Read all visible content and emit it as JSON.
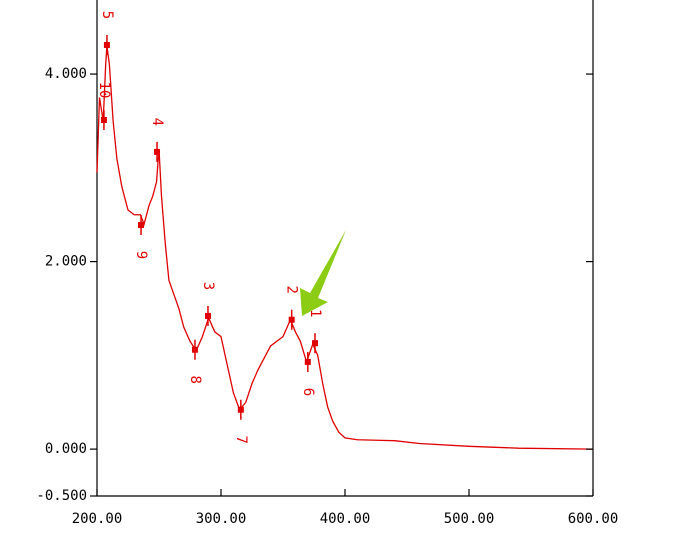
{
  "chart_data": {
    "type": "line",
    "xlim": [
      200,
      600
    ],
    "ylim": [
      -0.5,
      4.79
    ],
    "xticks": [
      {
        "value": 200,
        "label": "200.00"
      },
      {
        "value": 300,
        "label": "300.00"
      },
      {
        "value": 400,
        "label": "400.00"
      },
      {
        "value": 500,
        "label": "500.00"
      },
      {
        "value": 600,
        "label": "600.00"
      }
    ],
    "yticks": [
      {
        "value": -0.5,
        "label": "-0.500"
      },
      {
        "value": 0,
        "label": "0.000"
      },
      {
        "value": 2,
        "label": "2.000"
      },
      {
        "value": 4,
        "label": "4.000"
      }
    ],
    "grid": false,
    "series": [
      {
        "color": "#e00000",
        "x": [
          200,
          202,
          205,
          207,
          208,
          210,
          213,
          216,
          220,
          225,
          230,
          235,
          238,
          242,
          245,
          248,
          250,
          252,
          255,
          258,
          262,
          266,
          270,
          275,
          280,
          285,
          290,
          295,
          300,
          305,
          310,
          315,
          320,
          325,
          330,
          340,
          345,
          350,
          356,
          360,
          364,
          369,
          374,
          378,
          382,
          386,
          390,
          395,
          400,
          410,
          440,
          460,
          500,
          540,
          600
        ],
        "values": [
          2.95,
          3.75,
          3.5,
          4.1,
          4.3,
          4.1,
          3.5,
          3.1,
          2.8,
          2.55,
          2.5,
          2.5,
          2.4,
          2.6,
          2.7,
          2.85,
          3.2,
          2.7,
          2.2,
          1.8,
          1.65,
          1.5,
          1.3,
          1.15,
          1.05,
          1.2,
          1.4,
          1.25,
          1.2,
          0.9,
          0.6,
          0.42,
          0.5,
          0.7,
          0.85,
          1.1,
          1.15,
          1.2,
          1.38,
          1.25,
          1.15,
          0.93,
          1.12,
          1.0,
          0.7,
          0.45,
          0.3,
          0.18,
          0.12,
          0.1,
          0.09,
          0.06,
          0.03,
          0.01,
          0.0
        ]
      }
    ],
    "markers": [
      {
        "label": "1",
        "x": 375.8,
        "y": 1.13
      },
      {
        "label": "2",
        "x": 357,
        "y": 1.38
      },
      {
        "label": "3",
        "x": 289.5,
        "y": 1.42
      },
      {
        "label": "4",
        "x": 248.4,
        "y": 3.17
      },
      {
        "label": "5",
        "x": 208,
        "y": 4.31
      },
      {
        "label": "6",
        "x": 370,
        "y": 0.93
      },
      {
        "label": "7",
        "x": 316,
        "y": 0.42
      },
      {
        "label": "8",
        "x": 279,
        "y": 1.06
      },
      {
        "label": "9",
        "x": 235.5,
        "y": 2.39
      },
      {
        "label": "10",
        "x": 205.6,
        "y": 3.51
      }
    ]
  }
}
